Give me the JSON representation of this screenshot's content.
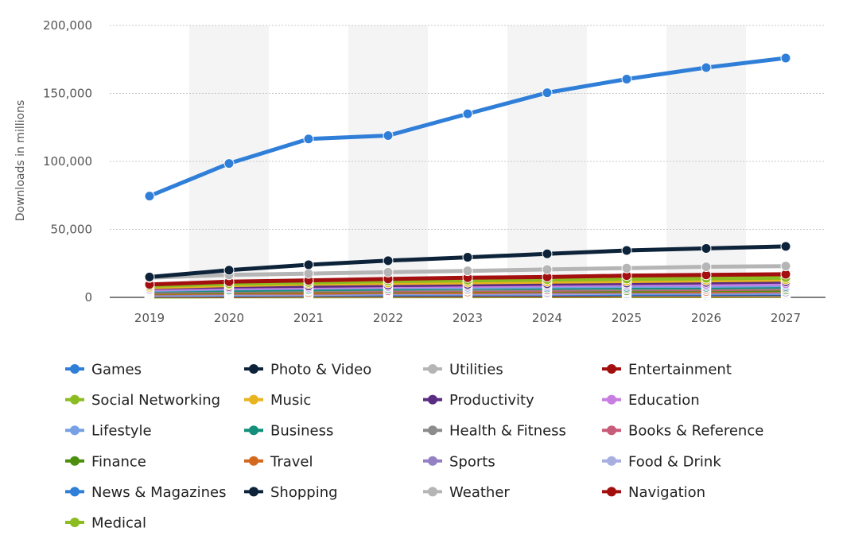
{
  "chart_data": {
    "type": "line",
    "title": "",
    "xlabel": "",
    "ylabel": "Downloads in millions",
    "ylim": [
      0,
      200000
    ],
    "yticks": [
      0,
      50000,
      100000,
      150000,
      200000
    ],
    "ytick_labels": [
      "0",
      "50,000",
      "100,000",
      "150,000",
      "200,000"
    ],
    "categories": [
      "2019",
      "2020",
      "2021",
      "2022",
      "2023",
      "2024",
      "2025",
      "2026",
      "2027"
    ],
    "grid": true,
    "legend": "bottom",
    "series": [
      {
        "name": "Games",
        "color": "#2f7ed8",
        "values": [
          74500,
          98500,
          116500,
          119000,
          135000,
          150500,
          160500,
          169000,
          176000
        ]
      },
      {
        "name": "Photo & Video",
        "color": "#0d233a",
        "values": [
          15000,
          20000,
          24000,
          27000,
          29500,
          32000,
          34500,
          36000,
          37500
        ]
      },
      {
        "name": "Utilities",
        "color": "#b5b5b5",
        "values": [
          14500,
          16500,
          17500,
          18500,
          19500,
          20500,
          21500,
          22500,
          23000
        ]
      },
      {
        "name": "Entertainment",
        "color": "#a30f0f",
        "values": [
          9500,
          11500,
          12500,
          13500,
          14500,
          15000,
          16000,
          16500,
          17000
        ]
      },
      {
        "name": "Social Networking",
        "color": "#8bbc21",
        "values": [
          8500,
          10000,
          11000,
          12000,
          12500,
          13000,
          13500,
          14000,
          14500
        ]
      },
      {
        "name": "Music",
        "color": "#e8b520",
        "values": [
          7500,
          9000,
          10000,
          10500,
          11000,
          11500,
          12000,
          12500,
          13000
        ]
      },
      {
        "name": "Productivity",
        "color": "#5a2d82",
        "values": [
          7000,
          8000,
          8500,
          9000,
          9500,
          10000,
          10500,
          11000,
          11500
        ]
      },
      {
        "name": "Education",
        "color": "#c77ee0",
        "values": [
          6000,
          7000,
          7500,
          8000,
          8500,
          9000,
          9500,
          9500,
          10000
        ]
      },
      {
        "name": "Lifestyle",
        "color": "#77a1e5",
        "values": [
          5500,
          6500,
          7000,
          7500,
          7500,
          8000,
          8500,
          8500,
          9000
        ]
      },
      {
        "name": "Business",
        "color": "#138f7a",
        "values": [
          5000,
          5500,
          6000,
          6500,
          7000,
          7000,
          7500,
          7500,
          8000
        ]
      },
      {
        "name": "Health & Fitness",
        "color": "#8c8c8c",
        "values": [
          4500,
          5000,
          5500,
          6000,
          6000,
          6500,
          6500,
          7000,
          7000
        ]
      },
      {
        "name": "Books & Reference",
        "color": "#c85b7a",
        "values": [
          4000,
          4500,
          5000,
          5000,
          5500,
          5500,
          6000,
          6000,
          6500
        ]
      },
      {
        "name": "Finance",
        "color": "#4b8f0c",
        "values": [
          3500,
          4000,
          4500,
          4500,
          5000,
          5000,
          5000,
          5500,
          5500
        ]
      },
      {
        "name": "Travel",
        "color": "#d2691e",
        "values": [
          3000,
          3500,
          3500,
          4000,
          4000,
          4500,
          4500,
          4500,
          5000
        ]
      },
      {
        "name": "Sports",
        "color": "#9580c4",
        "values": [
          2500,
          3000,
          3000,
          3500,
          3500,
          3500,
          4000,
          4000,
          4000
        ]
      },
      {
        "name": "Food & Drink",
        "color": "#a8aee0",
        "values": [
          2000,
          2500,
          2500,
          3000,
          3000,
          3000,
          3500,
          3500,
          3500
        ]
      },
      {
        "name": "News & Magazines",
        "color": "#2f7ed8",
        "values": [
          1800,
          2000,
          2200,
          2400,
          2500,
          2600,
          2700,
          2800,
          2900
        ]
      },
      {
        "name": "Shopping",
        "color": "#0d233a",
        "values": [
          1600,
          1800,
          2000,
          2100,
          2200,
          2300,
          2400,
          2500,
          2600
        ]
      },
      {
        "name": "Weather",
        "color": "#b5b5b5",
        "values": [
          1300,
          1500,
          1600,
          1700,
          1800,
          1900,
          1900,
          2000,
          2000
        ]
      },
      {
        "name": "Navigation",
        "color": "#a30f0f",
        "values": [
          1000,
          1100,
          1200,
          1300,
          1400,
          1400,
          1500,
          1500,
          1600
        ]
      },
      {
        "name": "Medical",
        "color": "#8bbc21",
        "values": [
          600,
          700,
          700,
          800,
          800,
          900,
          900,
          900,
          1000
        ]
      }
    ]
  }
}
